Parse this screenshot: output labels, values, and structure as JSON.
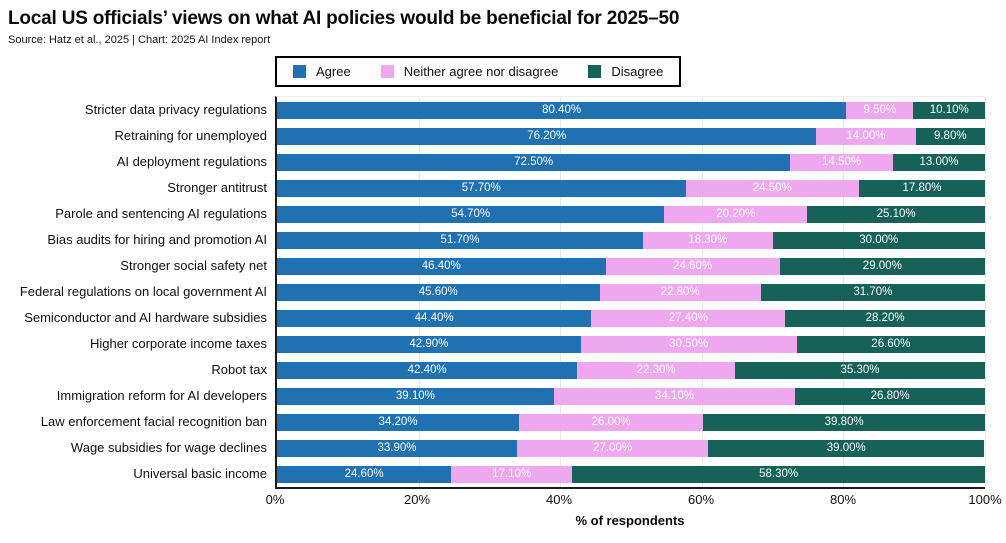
{
  "header": {
    "title": "Local US officials’ views on what AI policies would be beneficial for 2025–50",
    "subtitle": "Source: Hatz et al., 2025 | Chart: 2025 AI Index report"
  },
  "chart_data": {
    "type": "bar",
    "orientation": "horizontal",
    "stacked": true,
    "title": "Local US officials’ views on what AI policies would be beneficial for 2025–50",
    "xlabel": "% of respondents",
    "xlim": [
      0,
      100
    ],
    "xtick_labels": [
      "0%",
      "20%",
      "40%",
      "60%",
      "80%",
      "100%"
    ],
    "grid": "vertical-light",
    "legend_position": "top",
    "categories": [
      "Stricter data privacy regulations",
      "Retraining for unemployed",
      "AI deployment regulations",
      "Stronger antitrust",
      "Parole and sentencing AI regulations",
      "Bias audits for hiring and promotion AI",
      "Stronger social safety net",
      "Federal regulations on local government AI",
      "Semiconductor and AI hardware subsidies",
      "Higher corporate income taxes",
      "Robot tax",
      "Immigration reform for AI developers",
      "Law enforcement facial recognition ban",
      "Wage subsidies for wage declines",
      "Universal basic income"
    ],
    "series": [
      {
        "name": "Agree",
        "color": "#2071b2",
        "values": [
          80.4,
          76.2,
          72.5,
          57.7,
          54.7,
          51.7,
          46.4,
          45.6,
          44.4,
          42.9,
          42.4,
          39.1,
          34.2,
          33.9,
          24.6
        ],
        "value_labels": [
          "80.40%",
          "76.20%",
          "72.50%",
          "57.70%",
          "54.70%",
          "51.70%",
          "46.40%",
          "45.60%",
          "44.40%",
          "42.90%",
          "42.40%",
          "39.10%",
          "34.20%",
          "33.90%",
          "24.60%"
        ]
      },
      {
        "name": "Neither agree nor disagree",
        "color": "#efa7ef",
        "values": [
          9.5,
          14.0,
          14.5,
          24.5,
          20.2,
          18.3,
          24.6,
          22.8,
          27.4,
          30.5,
          22.3,
          34.1,
          26.0,
          27.0,
          17.1
        ],
        "value_labels": [
          "9.50%",
          "14.00%",
          "14.50%",
          "24.50%",
          "20.20%",
          "18.30%",
          "24.60%",
          "22.80%",
          "27.40%",
          "30.50%",
          "22.30%",
          "34.10%",
          "26.00%",
          "27.00%",
          "17.10%"
        ]
      },
      {
        "name": "Disagree",
        "color": "#166258",
        "values": [
          10.1,
          9.8,
          13.0,
          17.8,
          25.1,
          30.0,
          29.0,
          31.7,
          28.2,
          26.6,
          35.3,
          26.8,
          39.8,
          39.0,
          58.3
        ],
        "value_labels": [
          "10.10%",
          "9.80%",
          "13.00%",
          "17.80%",
          "25.10%",
          "30.00%",
          "29.00%",
          "31.70%",
          "28.20%",
          "26.60%",
          "35.30%",
          "26.80%",
          "39.80%",
          "39.00%",
          "58.30%"
        ]
      }
    ]
  }
}
